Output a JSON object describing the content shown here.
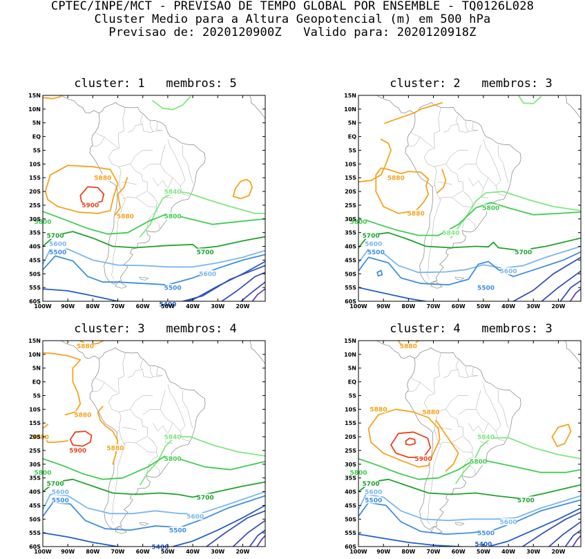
{
  "header": {
    "line1": "CPTEC/INPE/MCT - PREVISAO DE TEMPO GLOBAL POR ENSEMBLE - TQ0126L028",
    "line2": "Cluster Medio para a Altura Geopotencial (m) em 500 hPa",
    "line3": "Previsao de: 2020120900Z   Valido para: 2020120918Z"
  },
  "axes": {
    "lat_ticks": [
      "15N",
      "10N",
      "5N",
      "EQ",
      "5S",
      "10S",
      "15S",
      "20S",
      "25S",
      "30S",
      "35S",
      "40S",
      "45S",
      "50S",
      "55S",
      "60S"
    ],
    "lon_ticks": [
      "100W",
      "90W",
      "80W",
      "70W",
      "60W",
      "50W",
      "40W",
      "30W",
      "20W"
    ]
  },
  "colors": {
    "5900": "#e8431e",
    "5880": "#f5a31b",
    "5840": "#7fe87f",
    "5800": "#3fcc50",
    "5700": "#1da32a",
    "5600": "#7ab7ee",
    "5500": "#3d8ee0",
    "5400": "#1e5ec8",
    "low": "#3a4fb8",
    "deep": "#6a3fb0",
    "coast": "#808080"
  },
  "panels": [
    {
      "title": "cluster: 1   membros: 5",
      "labels": [
        {
          "text": "5880",
          "lon": -76,
          "lat": -15,
          "key": "5880"
        },
        {
          "text": "5900",
          "lon": -81,
          "lat": -25,
          "key": "5900"
        },
        {
          "text": "5880",
          "lon": -67,
          "lat": -29,
          "key": "5880"
        },
        {
          "text": "5840",
          "lon": -48,
          "lat": -20,
          "key": "5840"
        },
        {
          "text": "5800",
          "lon": -48,
          "lat": -29,
          "key": "5800"
        },
        {
          "text": "5800",
          "lon": -100,
          "lat": -31,
          "key": "5800"
        },
        {
          "text": "5700",
          "lon": -95,
          "lat": -36,
          "key": "5700"
        },
        {
          "text": "5700",
          "lon": -35,
          "lat": -42,
          "key": "5700"
        },
        {
          "text": "5600",
          "lon": -94,
          "lat": -39,
          "key": "5600"
        },
        {
          "text": "5600",
          "lon": -34,
          "lat": -50,
          "key": "5600"
        },
        {
          "text": "5500",
          "lon": -94,
          "lat": -42,
          "key": "5500"
        },
        {
          "text": "5500",
          "lon": -48,
          "lat": -55,
          "key": "5500"
        },
        {
          "text": "5400",
          "lon": -50,
          "lat": -61,
          "key": "5400"
        }
      ]
    },
    {
      "title": "cluster: 2   membros: 3",
      "labels": [
        {
          "text": "5880",
          "lon": -85,
          "lat": -15,
          "key": "5880"
        },
        {
          "text": "5880",
          "lon": -77,
          "lat": -28,
          "key": "5880"
        },
        {
          "text": "5840",
          "lon": -63,
          "lat": -35,
          "key": "5840"
        },
        {
          "text": "5800",
          "lon": -47,
          "lat": -26,
          "key": "5800"
        },
        {
          "text": "5800",
          "lon": -100,
          "lat": -31,
          "key": "5800"
        },
        {
          "text": "5700",
          "lon": -95,
          "lat": -36,
          "key": "5700"
        },
        {
          "text": "5700",
          "lon": -34,
          "lat": -42,
          "key": "5700"
        },
        {
          "text": "5600",
          "lon": -94,
          "lat": -39,
          "key": "5600"
        },
        {
          "text": "5600",
          "lon": -40,
          "lat": -49,
          "key": "5600"
        },
        {
          "text": "5500",
          "lon": -93,
          "lat": -42,
          "key": "5500"
        },
        {
          "text": "5500",
          "lon": -49,
          "lat": -55,
          "key": "5500"
        }
      ]
    },
    {
      "title": "cluster: 3   membros: 4",
      "labels": [
        {
          "text": "5880",
          "lon": -83,
          "lat": 13,
          "key": "5880"
        },
        {
          "text": "5880",
          "lon": -84,
          "lat": -12,
          "key": "5880"
        },
        {
          "text": "5880",
          "lon": -101,
          "lat": -20,
          "key": "5880"
        },
        {
          "text": "5880",
          "lon": -71,
          "lat": -24,
          "key": "5880"
        },
        {
          "text": "5900",
          "lon": -86,
          "lat": -25,
          "key": "5900"
        },
        {
          "text": "5840",
          "lon": -48,
          "lat": -20,
          "key": "5840"
        },
        {
          "text": "5800",
          "lon": -48,
          "lat": -28,
          "key": "5800"
        },
        {
          "text": "5800",
          "lon": -100,
          "lat": -33,
          "key": "5800"
        },
        {
          "text": "5700",
          "lon": -95,
          "lat": -37,
          "key": "5700"
        },
        {
          "text": "5700",
          "lon": -35,
          "lat": -42,
          "key": "5700"
        },
        {
          "text": "5600",
          "lon": -93,
          "lat": -40,
          "key": "5600"
        },
        {
          "text": "5600",
          "lon": -39,
          "lat": -49,
          "key": "5600"
        },
        {
          "text": "5500",
          "lon": -93,
          "lat": -43,
          "key": "5500"
        },
        {
          "text": "5500",
          "lon": -46,
          "lat": -54,
          "key": "5500"
        },
        {
          "text": "5400",
          "lon": -53,
          "lat": -60,
          "key": "5400"
        }
      ]
    },
    {
      "title": "cluster: 4   membros: 3",
      "labels": [
        {
          "text": "5880",
          "lon": -80,
          "lat": 13,
          "key": "5880"
        },
        {
          "text": "5880",
          "lon": -92,
          "lat": -10,
          "key": "5880"
        },
        {
          "text": "5880",
          "lon": -71,
          "lat": -11,
          "key": "5880"
        },
        {
          "text": "5900",
          "lon": -74,
          "lat": -28,
          "key": "5900"
        },
        {
          "text": "5840",
          "lon": -49,
          "lat": -20,
          "key": "5840"
        },
        {
          "text": "5800",
          "lon": -52,
          "lat": -29,
          "key": "5800"
        },
        {
          "text": "5800",
          "lon": -100,
          "lat": -33,
          "key": "5800"
        },
        {
          "text": "5700",
          "lon": -95,
          "lat": -37,
          "key": "5700"
        },
        {
          "text": "5700",
          "lon": -33,
          "lat": -43,
          "key": "5700"
        },
        {
          "text": "5600",
          "lon": -94,
          "lat": -40,
          "key": "5600"
        },
        {
          "text": "5600",
          "lon": -40,
          "lat": -51,
          "key": "5600"
        },
        {
          "text": "5500",
          "lon": -94,
          "lat": -43,
          "key": "5500"
        },
        {
          "text": "5500",
          "lon": -49,
          "lat": -55,
          "key": "5500"
        },
        {
          "text": "5400",
          "lon": -50,
          "lat": -59,
          "key": "5400"
        }
      ]
    }
  ]
}
